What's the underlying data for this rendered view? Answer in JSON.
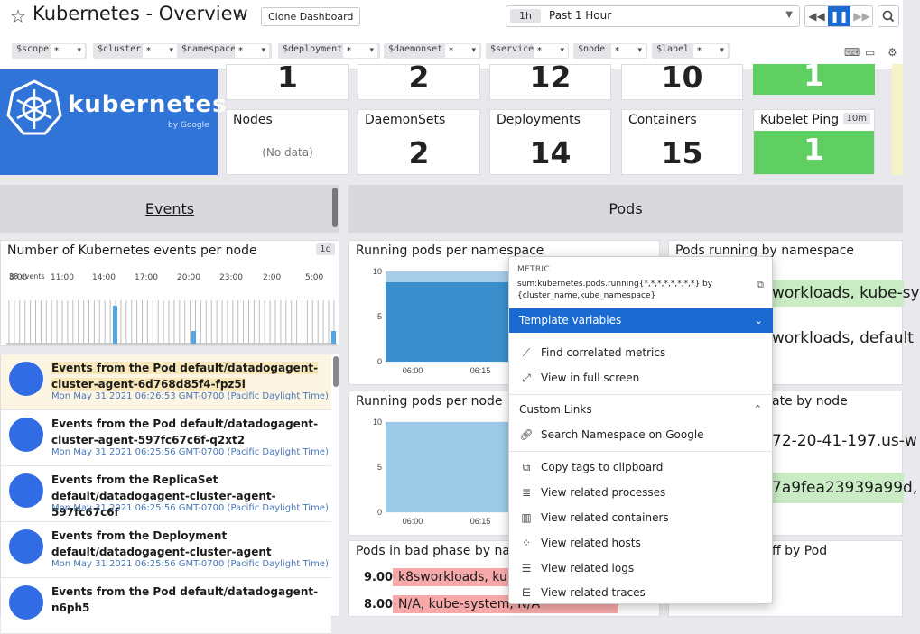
{
  "header": {
    "title": "Kubernetes - Overview",
    "clone_label": "Clone Dashboard",
    "time_chip": "1h",
    "time_label": "Past 1 Hour"
  },
  "template_vars": [
    {
      "name": "$scope",
      "value": "*"
    },
    {
      "name": "$cluster",
      "value": "*"
    },
    {
      "name": "$namespace",
      "value": "*"
    },
    {
      "name": "$deployment",
      "value": "*"
    },
    {
      "name": "$daemonset",
      "value": "*"
    },
    {
      "name": "$service",
      "value": "*"
    },
    {
      "name": "$node",
      "value": "*"
    },
    {
      "name": "$label",
      "value": "*"
    }
  ],
  "logo": {
    "text": "kubernetes",
    "sub": "by Google"
  },
  "top_values": [
    "1",
    "2",
    "12",
    "10",
    "1"
  ],
  "tiles": [
    {
      "title": "Nodes",
      "value": "(No data)"
    },
    {
      "title": "DaemonSets",
      "value": "2"
    },
    {
      "title": "Deployments",
      "value": "14"
    },
    {
      "title": "Containers",
      "value": "15"
    },
    {
      "title": "Kubelet Ping",
      "value": "1",
      "badge": "10m"
    }
  ],
  "groups": {
    "events": "Events",
    "pods": "Pods"
  },
  "events_widget": {
    "title": "Number of Kubernetes events per node",
    "badge": "1d",
    "ticks": [
      "8:00",
      "11:00",
      "14:00",
      "17:00",
      "20:00",
      "23:00",
      "2:00",
      "5:00"
    ],
    "y_label": "38 events"
  },
  "events": [
    {
      "title": "Events from the Pod default/datadogagent-cluster-agent-6d768d85f4-fpz5l",
      "time": "Mon May 31 2021 06:26:53 GMT-0700 (Pacific Daylight Time)"
    },
    {
      "title": "Events from the Pod default/datadogagent-cluster-agent-597fc67c6f-q2xt2",
      "time": "Mon May 31 2021 06:25:56 GMT-0700 (Pacific Daylight Time)"
    },
    {
      "title": "Events from the ReplicaSet default/datadogagent-cluster-agent-597fc67c6f",
      "time": "Mon May 31 2021 06:25:56 GMT-0700 (Pacific Daylight Time)"
    },
    {
      "title": "Events from the Deployment default/datadogagent-cluster-agent",
      "time": "Mon May 31 2021 06:25:56 GMT-0700 (Pacific Daylight Time)"
    },
    {
      "title": "Events from the Pod default/datadogagent-n6ph5",
      "time": ""
    }
  ],
  "widgets": {
    "running_ns": "Running pods per namespace",
    "running_node": "Running pods per node",
    "bad_phase": "Pods in bad phase by nam",
    "pods_ns": "Pods running by namespace",
    "by_node": "ate by node",
    "backoff": "ff by Pod"
  },
  "chart_data": [
    {
      "type": "area",
      "title": "Running pods per namespace",
      "x": [
        "06:00",
        "06:15"
      ],
      "y_ticks": [
        0,
        5,
        10
      ],
      "ylim": [
        0,
        10
      ]
    },
    {
      "type": "area",
      "title": "Running pods per node",
      "x": [
        "06:00",
        "06:15"
      ],
      "y_ticks": [
        0,
        5,
        10
      ],
      "ylim": [
        0,
        10
      ]
    }
  ],
  "pods_ns_rows": [
    "workloads, kube-sy",
    "workloads, default"
  ],
  "by_node_rows": [
    "72-20-41-197.us-w",
    "7a9fea23939a99d,"
  ],
  "bad_phase_rows": [
    {
      "value": "9.00",
      "label": "k8sworkloads, kube-"
    },
    {
      "value": "8.00",
      "label": "N/A, kube-system, N/A"
    }
  ],
  "menu": {
    "heading": "METRIC",
    "query": "sum:kubernetes.pods.running{*,*,*,*,*,*,*,*} by {cluster_name,kube_namespace}",
    "template_vars": "Template variables",
    "find_correlated": "Find correlated metrics",
    "full_screen": "View in full screen",
    "custom_links": "Custom Links",
    "search_ns": "Search Namespace on Google",
    "copy_tags": "Copy tags to clipboard",
    "related_processes": "View related processes",
    "related_containers": "View related containers",
    "related_hosts": "View related hosts",
    "related_logs": "View related logs",
    "related_traces": "View related traces"
  },
  "colors": {
    "accent": "#1b6ad1",
    "green": "#5fcf61",
    "kube_blue": "#2f74d6",
    "red": "#f7a9a9",
    "light_green": "#c9ecc4"
  }
}
